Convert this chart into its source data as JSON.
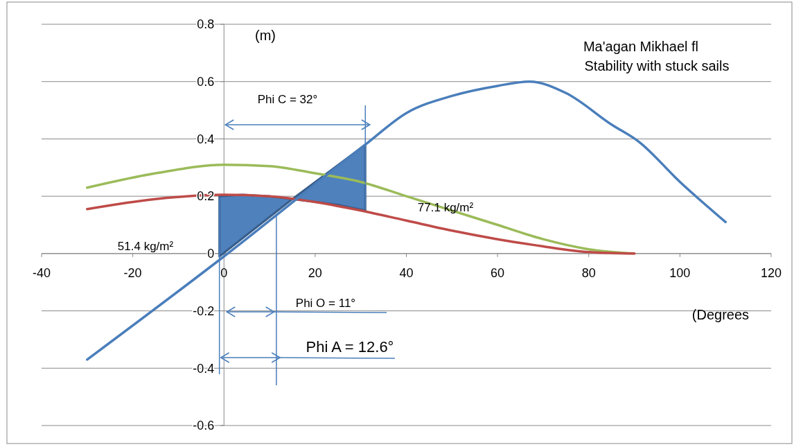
{
  "chart_data": {
    "type": "line",
    "title": "Ma'agan Mikhael  fl",
    "subtitle": "Stability with stuck sails",
    "xlabel": "(Degrees",
    "ylabel": "(m)",
    "annotations": [
      "Phi C = 32°",
      "Phi O = 11°",
      "Phi A = 12.6°",
      "77.1 kg/m²",
      "51.4 kg/m²"
    ],
    "xlim": [
      -40,
      120
    ],
    "xticks": [
      -40,
      -20,
      0,
      20,
      40,
      60,
      80,
      100,
      120
    ],
    "ylim": [
      -0.6,
      0.8
    ],
    "yticks": [
      -0.6,
      -0.4,
      -0.2,
      0,
      0.2,
      0.4,
      0.6,
      0.8
    ],
    "grid": "y",
    "marker": "none",
    "line_style": "solid",
    "series": [
      {
        "color": "#9bbb59",
        "x": [
          -30,
          -15,
          0,
          10,
          20,
          30,
          40,
          50,
          60,
          70,
          80,
          90
        ],
        "values": [
          0.23,
          0.28,
          0.31,
          0.305,
          0.28,
          0.25,
          0.2,
          0.15,
          0.1,
          0.05,
          0.015,
          0
        ]
      },
      {
        "color": "#be4b48",
        "x": [
          -30,
          -15,
          0,
          10,
          20,
          30,
          40,
          50,
          60,
          70,
          80,
          90
        ],
        "values": [
          0.155,
          0.19,
          0.205,
          0.2,
          0.18,
          0.15,
          0.115,
          0.08,
          0.05,
          0.025,
          0.005,
          0
        ]
      },
      {
        "color": "#4a7ebb",
        "x": [
          -30,
          0,
          31,
          40,
          50,
          60,
          67,
          75,
          85,
          91,
          100,
          110
        ],
        "values": [
          -0.37,
          -0.01,
          0.38,
          0.49,
          0.55,
          0.585,
          0.6,
          0.56,
          0.45,
          0.39,
          0.25,
          0.11
        ]
      }
    ]
  }
}
